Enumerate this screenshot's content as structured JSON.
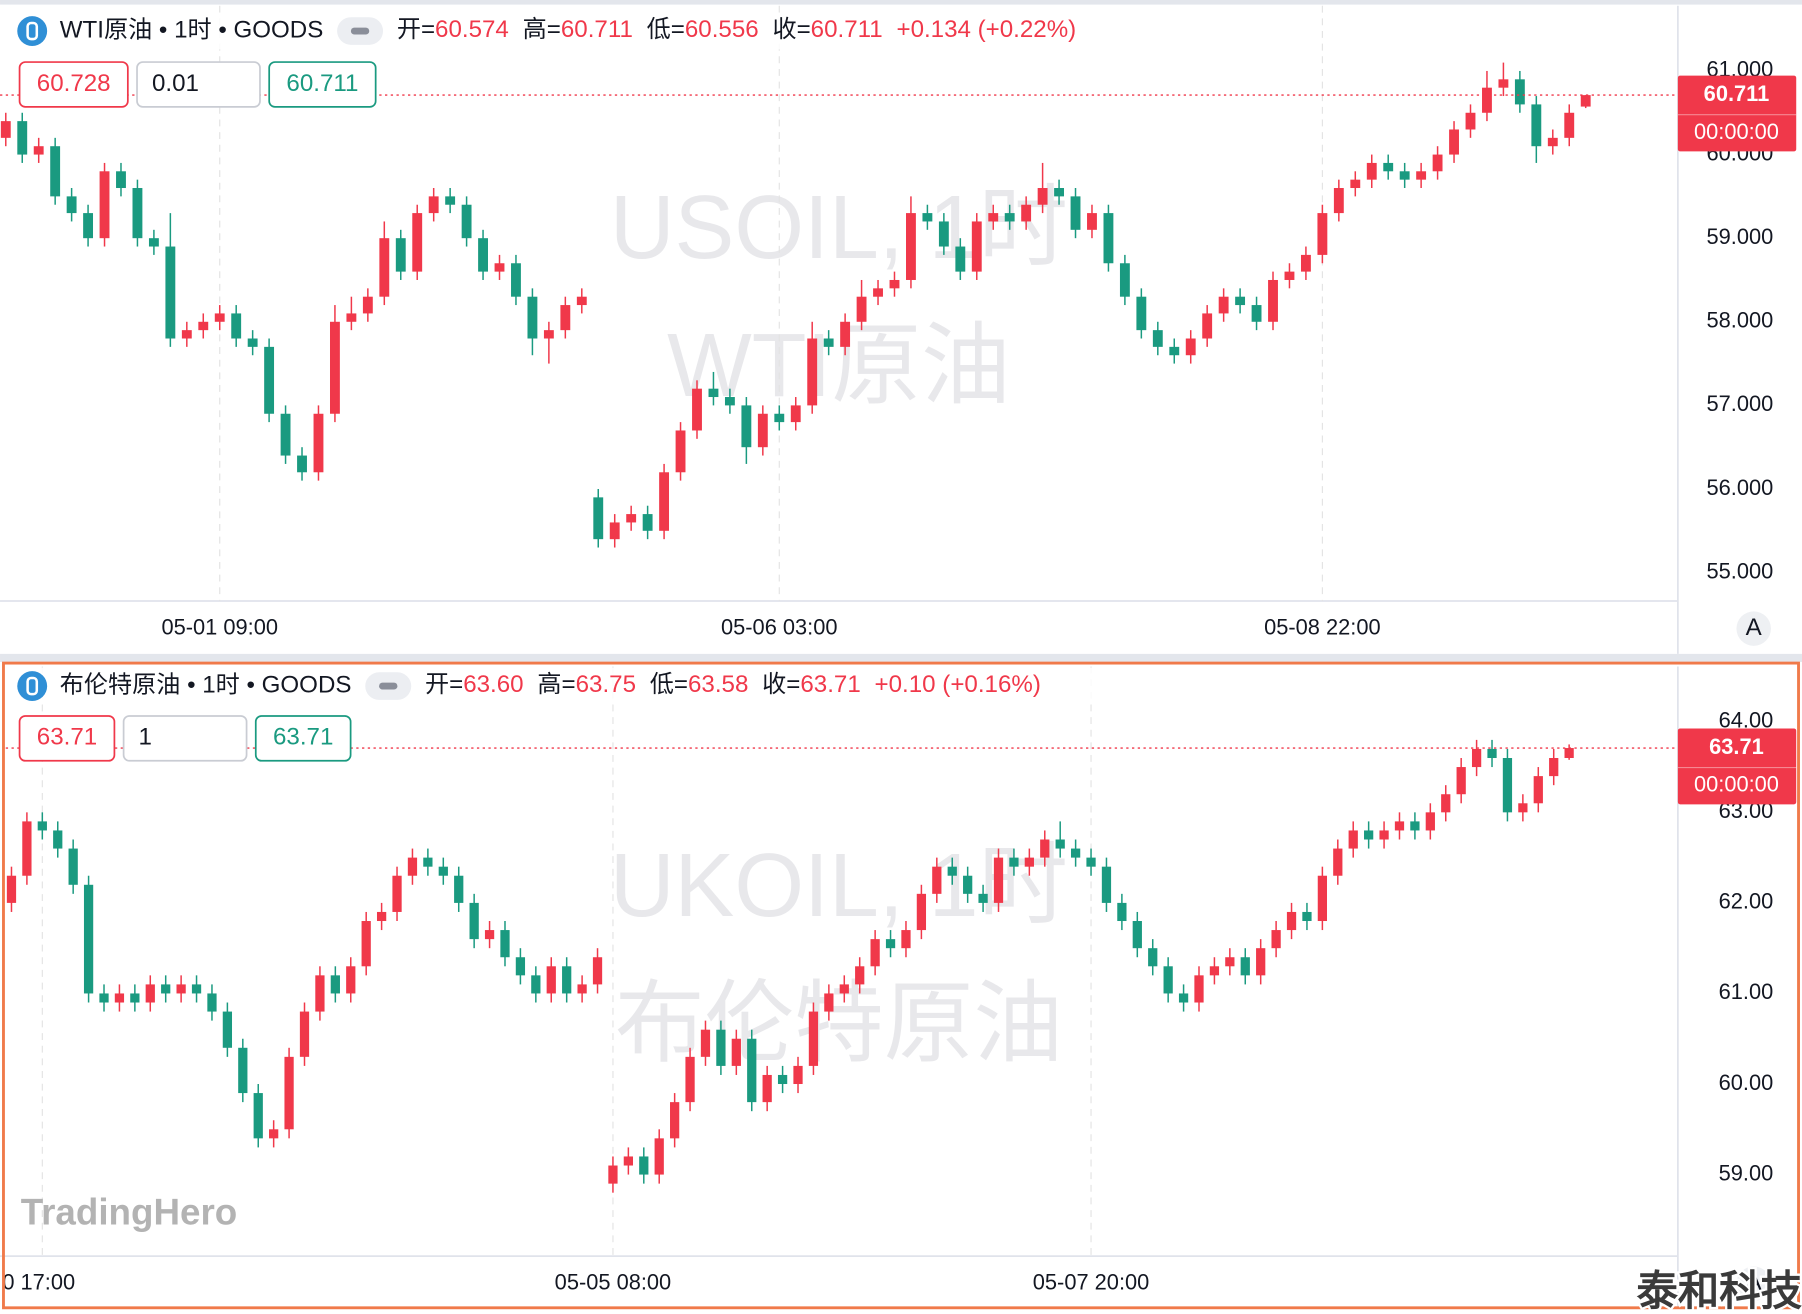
{
  "chart_data": [
    {
      "type": "candlestick",
      "title": "WTI原油 • 1时 • GOODS",
      "ohlc_legend": [
        {
          "label": "开=",
          "value": "60.574"
        },
        {
          "label": "高=",
          "value": "60.711"
        },
        {
          "label": "低=",
          "value": "60.556"
        },
        {
          "label": "收=",
          "value": "60.711"
        }
      ],
      "change": "+0.134 (+0.22%)",
      "order_panel": {
        "sell": "60.728",
        "quantity": "0.01",
        "buy": "60.711"
      },
      "watermark": [
        "USOIL, 1时",
        "WTI原油"
      ],
      "open": [
        60.2,
        60.4,
        60.0,
        60.1,
        59.5,
        59.3,
        59.0,
        59.8,
        59.6,
        59.0,
        58.9,
        57.8,
        57.9,
        58.0,
        58.1,
        57.8,
        57.7,
        56.9,
        56.4,
        56.2,
        56.9,
        58.0,
        58.1,
        58.3,
        59.0,
        58.6,
        59.3,
        59.5,
        59.4,
        59.0,
        58.6,
        58.7,
        58.3,
        57.8,
        57.9,
        58.2,
        55.9,
        55.4,
        55.6,
        55.7,
        55.5,
        56.2,
        56.7,
        57.2,
        57.1,
        57.0,
        56.5,
        56.9,
        56.8,
        57.0,
        57.8,
        57.7,
        58.0,
        58.3,
        58.4,
        58.5,
        59.3,
        59.2,
        58.9,
        58.6,
        59.2,
        59.3,
        59.2,
        59.4,
        59.6,
        59.5,
        59.1,
        59.3,
        58.7,
        58.3,
        57.9,
        57.7,
        57.6,
        57.8,
        58.1,
        58.3,
        58.2,
        58.0,
        58.5,
        58.6,
        58.8,
        59.3,
        59.6,
        59.7,
        59.9,
        59.8,
        59.7,
        59.8,
        60.0,
        60.3,
        60.5,
        60.8,
        60.9,
        60.6,
        60.1,
        60.2,
        60.574
      ],
      "high": [
        60.5,
        60.5,
        60.2,
        60.2,
        59.6,
        59.4,
        59.9,
        59.9,
        59.7,
        59.1,
        59.3,
        58.0,
        58.1,
        58.2,
        58.2,
        57.9,
        57.8,
        57.0,
        56.5,
        57.0,
        58.2,
        58.3,
        58.4,
        59.2,
        59.1,
        59.4,
        59.6,
        59.6,
        59.5,
        59.1,
        58.8,
        58.8,
        58.4,
        58.0,
        58.3,
        58.4,
        56.0,
        55.7,
        55.8,
        55.8,
        56.3,
        56.8,
        57.3,
        57.4,
        57.2,
        57.1,
        57.0,
        57.0,
        57.1,
        58.0,
        57.9,
        58.1,
        58.5,
        58.5,
        58.6,
        59.5,
        59.4,
        59.3,
        59.0,
        59.3,
        59.4,
        59.4,
        59.5,
        59.9,
        59.7,
        59.6,
        59.4,
        59.4,
        58.8,
        58.4,
        58.0,
        57.8,
        57.9,
        58.2,
        58.4,
        58.4,
        58.3,
        58.6,
        58.7,
        58.9,
        59.4,
        59.7,
        59.8,
        60.0,
        60.0,
        59.9,
        59.9,
        60.1,
        60.4,
        60.6,
        61.0,
        61.1,
        61.0,
        60.7,
        60.3,
        60.6,
        60.711
      ],
      "low": [
        60.1,
        59.9,
        59.9,
        59.4,
        59.2,
        58.9,
        58.9,
        59.5,
        58.9,
        58.8,
        57.7,
        57.7,
        57.8,
        57.9,
        57.7,
        57.6,
        56.8,
        56.3,
        56.1,
        56.1,
        56.8,
        57.9,
        58.0,
        58.2,
        58.5,
        58.5,
        59.2,
        59.3,
        58.9,
        58.5,
        58.5,
        58.2,
        57.6,
        57.5,
        57.8,
        58.1,
        55.3,
        55.3,
        55.5,
        55.4,
        55.4,
        56.1,
        56.6,
        57.0,
        56.9,
        56.3,
        56.4,
        56.7,
        56.7,
        56.9,
        57.6,
        57.6,
        57.9,
        58.2,
        58.3,
        58.4,
        59.1,
        58.8,
        58.5,
        58.5,
        59.1,
        59.1,
        59.1,
        59.3,
        59.4,
        59.0,
        59.0,
        58.6,
        58.2,
        57.8,
        57.6,
        57.5,
        57.5,
        57.7,
        58.0,
        58.1,
        57.9,
        57.9,
        58.4,
        58.5,
        58.7,
        59.2,
        59.5,
        59.6,
        59.7,
        59.6,
        59.6,
        59.7,
        59.9,
        60.2,
        60.4,
        60.7,
        60.5,
        59.9,
        60.0,
        60.1,
        60.556
      ],
      "close": [
        60.4,
        60.0,
        60.1,
        59.5,
        59.3,
        59.0,
        59.8,
        59.6,
        59.0,
        58.9,
        57.8,
        57.9,
        58.0,
        58.1,
        57.8,
        57.7,
        56.9,
        56.4,
        56.2,
        56.9,
        58.0,
        58.1,
        58.3,
        59.0,
        58.6,
        59.3,
        59.5,
        59.4,
        59.0,
        58.6,
        58.7,
        58.3,
        57.8,
        57.9,
        58.2,
        58.3,
        55.4,
        55.6,
        55.7,
        55.5,
        56.2,
        56.7,
        57.2,
        57.1,
        57.0,
        56.5,
        56.9,
        56.8,
        57.0,
        57.8,
        57.7,
        58.0,
        58.3,
        58.4,
        58.5,
        59.3,
        59.2,
        58.9,
        58.6,
        59.2,
        59.3,
        59.2,
        59.4,
        59.6,
        59.5,
        59.1,
        59.3,
        58.7,
        58.3,
        57.9,
        57.7,
        57.6,
        57.8,
        58.1,
        58.3,
        58.2,
        58.0,
        58.5,
        58.6,
        58.8,
        59.3,
        59.6,
        59.7,
        59.9,
        59.8,
        59.7,
        59.8,
        60.0,
        60.3,
        60.5,
        60.8,
        60.9,
        60.6,
        60.1,
        60.2,
        60.5,
        60.711
      ],
      "xlim": [
        -0.35,
        101.6
      ],
      "xticks": [
        {
          "value": 13,
          "label": "05-01 09:00"
        },
        {
          "value": 47,
          "label": "05-06 03:00"
        },
        {
          "value": 80,
          "label": "05-08 22:00"
        }
      ],
      "ylim": [
        54.66,
        61.78
      ],
      "yticks": [
        {
          "value": 55,
          "label": "55.000"
        },
        {
          "value": 56,
          "label": "56.000"
        },
        {
          "value": 57,
          "label": "57.000"
        },
        {
          "value": 58,
          "label": "58.000"
        },
        {
          "value": 59,
          "label": "59.000"
        },
        {
          "value": 60,
          "label": "60.000"
        },
        {
          "value": 61,
          "label": "61.000"
        }
      ],
      "last_price": {
        "value": 60.711,
        "label": "60.711"
      },
      "countdown": "00:00:00",
      "up_color": "#f0384a",
      "down_color": "#1a9a80",
      "grid": "x",
      "auto_button": "A"
    },
    {
      "type": "candlestick",
      "title": "布伦特原油 • 1时 • GOODS",
      "ohlc_legend": [
        {
          "label": "开=",
          "value": "63.60"
        },
        {
          "label": "高=",
          "value": "63.75"
        },
        {
          "label": "低=",
          "value": "63.58"
        },
        {
          "label": "收=",
          "value": "63.71"
        }
      ],
      "change": "+0.10 (+0.16%)",
      "order_panel": {
        "sell": "63.71",
        "quantity": "1",
        "buy": "63.71"
      },
      "watermark": [
        "UKOIL, 1时",
        "布伦特原油"
      ],
      "open": [
        62.0,
        62.3,
        62.9,
        62.8,
        62.6,
        62.2,
        61.0,
        60.9,
        61.0,
        60.9,
        61.1,
        61.0,
        61.1,
        61.0,
        60.8,
        60.4,
        59.9,
        59.4,
        59.5,
        60.3,
        60.8,
        61.2,
        61.0,
        61.3,
        61.8,
        61.9,
        62.3,
        62.5,
        62.4,
        62.3,
        62.0,
        61.6,
        61.7,
        61.4,
        61.2,
        61.0,
        61.3,
        61.0,
        61.1,
        58.9,
        59.1,
        59.2,
        59.0,
        59.4,
        59.8,
        60.3,
        60.6,
        60.2,
        60.5,
        59.8,
        60.1,
        60.0,
        60.2,
        60.8,
        61.0,
        61.1,
        61.3,
        61.6,
        61.5,
        61.7,
        62.1,
        62.4,
        62.3,
        62.1,
        62.0,
        62.5,
        62.4,
        62.5,
        62.7,
        62.6,
        62.5,
        62.4,
        62.0,
        61.8,
        61.5,
        61.3,
        61.0,
        60.9,
        61.2,
        61.3,
        61.4,
        61.2,
        61.5,
        61.7,
        61.9,
        61.8,
        62.3,
        62.6,
        62.8,
        62.7,
        62.8,
        62.9,
        62.8,
        63.0,
        63.2,
        63.5,
        63.7,
        63.6,
        63.0,
        63.1,
        63.4,
        63.6
      ],
      "high": [
        62.4,
        63.0,
        63.0,
        62.9,
        62.7,
        62.3,
        61.1,
        61.1,
        61.1,
        61.2,
        61.2,
        61.2,
        61.2,
        61.1,
        60.9,
        60.5,
        60.0,
        59.6,
        60.4,
        60.9,
        61.3,
        61.3,
        61.4,
        61.9,
        62.0,
        62.4,
        62.6,
        62.6,
        62.5,
        62.4,
        62.1,
        61.8,
        61.8,
        61.5,
        61.3,
        61.4,
        61.4,
        61.2,
        61.5,
        59.2,
        59.3,
        59.3,
        59.5,
        59.9,
        60.4,
        60.7,
        60.7,
        60.6,
        60.6,
        60.2,
        60.2,
        60.3,
        60.9,
        61.1,
        61.2,
        61.4,
        61.7,
        61.7,
        61.8,
        62.2,
        62.5,
        62.5,
        62.4,
        62.2,
        62.6,
        62.6,
        62.6,
        62.8,
        62.9,
        62.7,
        62.6,
        62.5,
        62.1,
        61.9,
        61.6,
        61.4,
        61.1,
        61.3,
        61.4,
        61.5,
        61.5,
        61.6,
        61.8,
        62.0,
        62.0,
        62.4,
        62.7,
        62.9,
        62.9,
        62.9,
        63.0,
        63.0,
        63.1,
        63.3,
        63.6,
        63.8,
        63.8,
        63.7,
        63.2,
        63.5,
        63.7,
        63.75
      ],
      "low": [
        61.9,
        62.2,
        62.7,
        62.5,
        62.1,
        60.9,
        60.8,
        60.8,
        60.8,
        60.8,
        60.9,
        60.9,
        60.9,
        60.7,
        60.3,
        59.8,
        59.3,
        59.3,
        59.4,
        60.2,
        60.7,
        60.9,
        60.9,
        61.2,
        61.7,
        61.8,
        62.2,
        62.3,
        62.2,
        61.9,
        61.5,
        61.5,
        61.3,
        61.1,
        60.9,
        60.9,
        60.9,
        60.9,
        61.0,
        58.8,
        59.0,
        58.9,
        58.9,
        59.3,
        59.7,
        60.2,
        60.1,
        60.1,
        59.7,
        59.7,
        59.9,
        59.9,
        60.1,
        60.7,
        60.9,
        61.0,
        61.2,
        61.4,
        61.4,
        61.6,
        62.0,
        62.2,
        62.0,
        61.9,
        61.9,
        62.3,
        62.3,
        62.4,
        62.5,
        62.4,
        62.3,
        61.9,
        61.7,
        61.4,
        61.2,
        60.9,
        60.8,
        60.8,
        61.1,
        61.2,
        61.1,
        61.1,
        61.4,
        61.6,
        61.7,
        61.7,
        62.2,
        62.5,
        62.6,
        62.6,
        62.7,
        62.7,
        62.7,
        62.9,
        63.1,
        63.4,
        63.5,
        62.9,
        62.9,
        63.0,
        63.3,
        63.58
      ],
      "close": [
        62.3,
        62.9,
        62.8,
        62.6,
        62.2,
        61.0,
        60.9,
        61.0,
        60.9,
        61.1,
        61.0,
        61.1,
        61.0,
        60.8,
        60.4,
        59.9,
        59.4,
        59.5,
        60.3,
        60.8,
        61.2,
        61.0,
        61.3,
        61.8,
        61.9,
        62.3,
        62.5,
        62.4,
        62.3,
        62.0,
        61.6,
        61.7,
        61.4,
        61.2,
        61.0,
        61.3,
        61.0,
        61.1,
        61.4,
        59.1,
        59.2,
        59.0,
        59.4,
        59.8,
        60.3,
        60.6,
        60.2,
        60.5,
        59.8,
        60.1,
        60.0,
        60.2,
        60.8,
        61.0,
        61.1,
        61.3,
        61.6,
        61.5,
        61.7,
        62.1,
        62.4,
        62.3,
        62.1,
        62.0,
        62.5,
        62.4,
        62.5,
        62.7,
        62.6,
        62.5,
        62.4,
        62.0,
        61.8,
        61.5,
        61.3,
        61.0,
        60.9,
        61.2,
        61.3,
        61.4,
        61.2,
        61.5,
        61.7,
        61.9,
        61.8,
        62.3,
        62.6,
        62.8,
        62.7,
        62.8,
        62.9,
        62.8,
        63.0,
        63.2,
        63.5,
        63.7,
        63.6,
        63.0,
        63.1,
        63.4,
        63.6,
        63.71
      ],
      "xlim": [
        -0.37,
        108.05
      ],
      "xticks": [
        {
          "value": 2,
          "label": "0 17:00"
        },
        {
          "value": 39,
          "label": "05-05 08:00"
        },
        {
          "value": 70,
          "label": "05-07 20:00"
        }
      ],
      "ylim": [
        58.1,
        64.61
      ],
      "yticks": [
        {
          "value": 59,
          "label": "59.00"
        },
        {
          "value": 60,
          "label": "60.00"
        },
        {
          "value": 61,
          "label": "61.00"
        },
        {
          "value": 62,
          "label": "62.00"
        },
        {
          "value": 63,
          "label": "63.00"
        },
        {
          "value": 64,
          "label": "64.00"
        }
      ],
      "last_price": {
        "value": 63.71,
        "label": "63.71"
      },
      "countdown": "00:00:00",
      "up_color": "#f0384a",
      "down_color": "#1a9a80",
      "grid": "x",
      "auto_button": "A"
    }
  ],
  "branding": {
    "logo": "TradingHero",
    "corner_watermark": "泰和科技"
  }
}
